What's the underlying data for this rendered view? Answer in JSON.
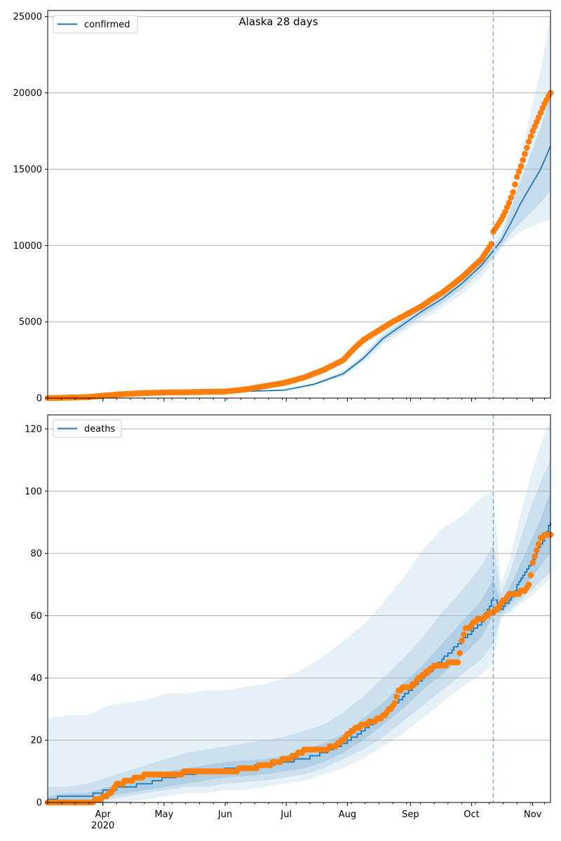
{
  "chart_data": [
    {
      "type": "line",
      "title": "Alaska 28 days",
      "legend": {
        "label": "confirmed",
        "placement": "top-left"
      },
      "ylim": [
        0,
        25400
      ],
      "yticks": [
        0,
        5000,
        10000,
        15000,
        20000,
        25000
      ],
      "ytick_labels": [
        "0",
        "5000",
        "10000",
        "15000",
        "20000",
        "25000"
      ],
      "grid": "y",
      "model_curve_days": [
        0,
        30,
        60,
        90,
        120,
        135,
        150,
        160,
        170,
        180,
        190,
        200,
        210,
        220,
        225,
        230,
        235,
        240,
        250,
        255
      ],
      "model_curve_values": [
        0,
        180,
        330,
        400,
        520,
        900,
        1600,
        2600,
        3900,
        4800,
        5700,
        6500,
        7500,
        8700,
        9500,
        10300,
        11500,
        12800,
        15000,
        16500
      ],
      "band_inner_lower": [
        0,
        180,
        330,
        400,
        500,
        850,
        1500,
        2450,
        3700,
        4550,
        5400,
        6200,
        7150,
        8300,
        9100,
        10000,
        10800,
        11500,
        12800,
        13600
      ],
      "band_inner_upper": [
        0,
        180,
        330,
        400,
        540,
        950,
        1700,
        2750,
        4100,
        5050,
        6000,
        6800,
        7850,
        9100,
        9900,
        10600,
        12400,
        14300,
        17700,
        20000
      ],
      "band_outer_lower": [
        0,
        180,
        330,
        400,
        480,
        800,
        1400,
        2300,
        3500,
        4300,
        5100,
        5900,
        6800,
        7900,
        8800,
        9800,
        10400,
        10900,
        11500,
        11700
      ],
      "band_outer_upper": [
        0,
        180,
        330,
        400,
        560,
        1000,
        1800,
        2900,
        4300,
        5300,
        6300,
        7100,
        8200,
        9500,
        10300,
        11000,
        13300,
        16000,
        21500,
        25200
      ],
      "observed_days": [
        0,
        20,
        30,
        40,
        50,
        60,
        70,
        80,
        90,
        100,
        110,
        120,
        130,
        140,
        150,
        155,
        160,
        165,
        170,
        175,
        180,
        185,
        190,
        195,
        200,
        205,
        210,
        215,
        220,
        225,
        226,
        228,
        230,
        232,
        234,
        236,
        238,
        240,
        242,
        244,
        246,
        248,
        250,
        252,
        254,
        255
      ],
      "observed_values": [
        0,
        60,
        180,
        270,
        330,
        370,
        380,
        410,
        430,
        560,
        780,
        1000,
        1350,
        1850,
        2500,
        3200,
        3800,
        4200,
        4600,
        5000,
        5350,
        5700,
        6050,
        6500,
        6900,
        7400,
        7900,
        8500,
        9100,
        10100,
        10900,
        11300,
        11700,
        12200,
        12800,
        13500,
        14500,
        15200,
        16000,
        16800,
        17500,
        18100,
        18700,
        19300,
        19800,
        20000
      ],
      "forecast_start_day": 226
    },
    {
      "type": "line",
      "legend": {
        "label": "deaths",
        "placement": "top-left"
      },
      "ylim": [
        0,
        124.5
      ],
      "yticks": [
        0,
        20,
        40,
        60,
        80,
        100,
        120
      ],
      "ytick_labels": [
        "0",
        "20",
        "40",
        "60",
        "80",
        "100",
        "120"
      ],
      "grid": "y",
      "x_ticks": [
        {
          "label": "Apr",
          "sub": "2020",
          "day": 28
        },
        {
          "label": "May",
          "day": 59
        },
        {
          "label": "Jun",
          "day": 90
        },
        {
          "label": "Jul",
          "day": 121
        },
        {
          "label": "Aug",
          "day": 152
        },
        {
          "label": "Sep",
          "day": 184
        },
        {
          "label": "Oct",
          "day": 215
        },
        {
          "label": "Nov",
          "day": 246
        }
      ],
      "x_range_days": [
        0,
        255
      ],
      "model_curve_days": [
        0,
        10,
        20,
        30,
        40,
        50,
        60,
        70,
        80,
        90,
        100,
        110,
        120,
        130,
        140,
        150,
        160,
        170,
        180,
        190,
        200,
        210,
        220,
        226,
        230,
        235,
        240,
        245,
        250,
        255
      ],
      "model_curve_values": [
        1,
        2,
        2,
        4,
        5,
        6,
        8,
        9,
        10,
        10.5,
        11,
        12,
        13,
        14,
        16,
        19,
        23,
        28,
        34,
        40,
        46,
        52,
        58,
        66,
        62,
        66,
        72,
        77,
        83,
        90
      ],
      "band_inner_lower": [
        0,
        1,
        1,
        2,
        3,
        4,
        5,
        6,
        7,
        8,
        8.5,
        9,
        10,
        11,
        13,
        16,
        20,
        25,
        30,
        36,
        41,
        47,
        53,
        60,
        61,
        64,
        68,
        72,
        76,
        80
      ],
      "band_inner_upper": [
        2,
        3,
        3,
        5,
        6,
        8,
        10,
        11,
        12,
        13,
        13.5,
        14,
        15,
        17,
        19,
        22,
        27,
        32,
        38,
        44,
        51,
        58,
        65,
        72,
        64,
        70,
        77,
        84,
        91,
        100
      ],
      "band_mid_lower": [
        0,
        0,
        0,
        1,
        2,
        3,
        4,
        5,
        5,
        6,
        6.5,
        7,
        8,
        9,
        11,
        14,
        17,
        21,
        26,
        31,
        36,
        41,
        46,
        51,
        60,
        62,
        65,
        68,
        71,
        74
      ],
      "band_mid_upper": [
        5,
        5,
        6,
        8,
        10,
        12,
        14,
        16,
        17,
        18,
        19,
        20,
        21,
        23,
        25,
        29,
        34,
        40,
        46,
        53,
        61,
        68,
        76,
        83,
        67,
        75,
        85,
        95,
        103,
        110
      ],
      "band_outer_lower": [
        0,
        0,
        0,
        0,
        0,
        1,
        2,
        3,
        3,
        4,
        4,
        5,
        6,
        7,
        9,
        11,
        14,
        18,
        22,
        27,
        32,
        37,
        41,
        45,
        59,
        61,
        64,
        66,
        69,
        72
      ],
      "band_outer_upper": [
        27,
        28,
        28,
        31,
        32,
        33,
        35,
        35,
        36,
        36,
        37,
        38,
        40,
        43,
        47,
        52,
        57,
        64,
        72,
        81,
        88,
        92,
        98,
        100,
        70,
        80,
        93,
        105,
        115,
        123
      ],
      "observed_days": [
        0,
        10,
        20,
        25,
        28,
        32,
        35,
        40,
        45,
        50,
        55,
        60,
        65,
        70,
        80,
        90,
        100,
        110,
        120,
        125,
        130,
        140,
        148,
        152,
        156,
        160,
        164,
        168,
        172,
        176,
        178,
        180,
        184,
        188,
        192,
        196,
        200,
        204,
        208,
        210,
        212,
        214,
        216,
        218,
        220,
        222,
        224,
        226,
        230,
        234,
        238,
        240,
        242,
        244,
        246,
        248,
        250,
        252,
        255
      ],
      "observed_values": [
        0,
        0,
        0,
        1,
        2,
        3,
        6,
        7,
        8,
        9,
        9,
        9,
        9,
        10,
        10,
        10,
        11,
        12,
        14,
        15,
        17,
        17,
        19,
        22,
        24,
        25,
        26,
        27,
        29,
        32,
        36,
        37,
        37,
        40,
        42,
        44,
        44,
        45,
        45,
        52,
        56,
        56,
        58,
        59,
        59,
        60,
        61,
        61,
        64,
        67,
        67,
        68,
        68,
        70,
        77,
        81,
        85,
        86,
        86
      ],
      "forecast_start_day": 226
    }
  ],
  "colors": {
    "line": "#1f77b4",
    "observed": "#ff7f0e",
    "band": "#1f77b4",
    "forecast_line": "#1f77b4",
    "grid": "#b0b0b0"
  }
}
